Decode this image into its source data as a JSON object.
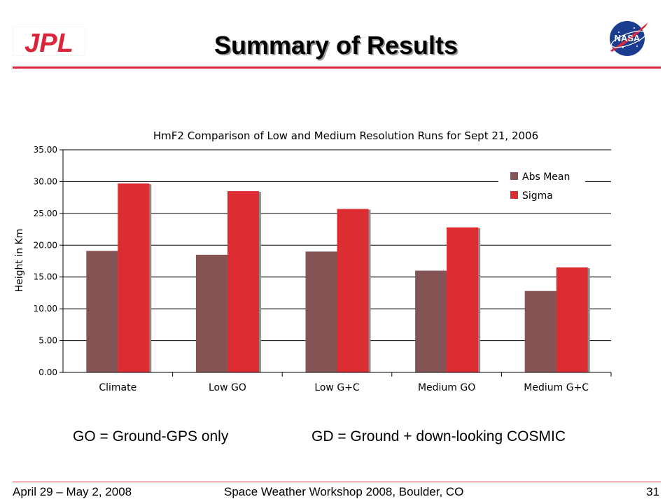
{
  "slide": {
    "title": "Summary of Results",
    "note_left": "GO = Ground-GPS only",
    "note_right": "GD = Ground + down-looking COSMIC",
    "footer_left": "April 29 – May 2, 2008",
    "footer_center": "Space Weather Workshop 2008, Boulder, CO",
    "footer_right": "31",
    "logos": {
      "left": "JPL",
      "right": "NASA"
    },
    "accent_color": "#d9263a"
  },
  "chart_data": {
    "type": "bar",
    "title": "HmF2 Comparison of Low and Medium Resolution Runs for Sept 21, 2006",
    "xlabel": "",
    "ylabel": "Height in Km",
    "categories": [
      "Climate",
      "Low GO",
      "Low G+C",
      "Medium GO",
      "Medium G+C"
    ],
    "series": [
      {
        "name": "Abs Mean",
        "color": "#855455",
        "values": [
          19.1,
          18.5,
          19.0,
          16.0,
          12.8
        ]
      },
      {
        "name": "Sigma",
        "color": "#dc2d32",
        "values": [
          29.7,
          28.5,
          25.7,
          22.8,
          16.5
        ]
      }
    ],
    "ylim": [
      0,
      35
    ],
    "yticks": [
      "0.00",
      "5.00",
      "10.00",
      "15.00",
      "20.00",
      "25.00",
      "30.00",
      "35.00"
    ],
    "grid": true,
    "legend_position": "top-right"
  }
}
